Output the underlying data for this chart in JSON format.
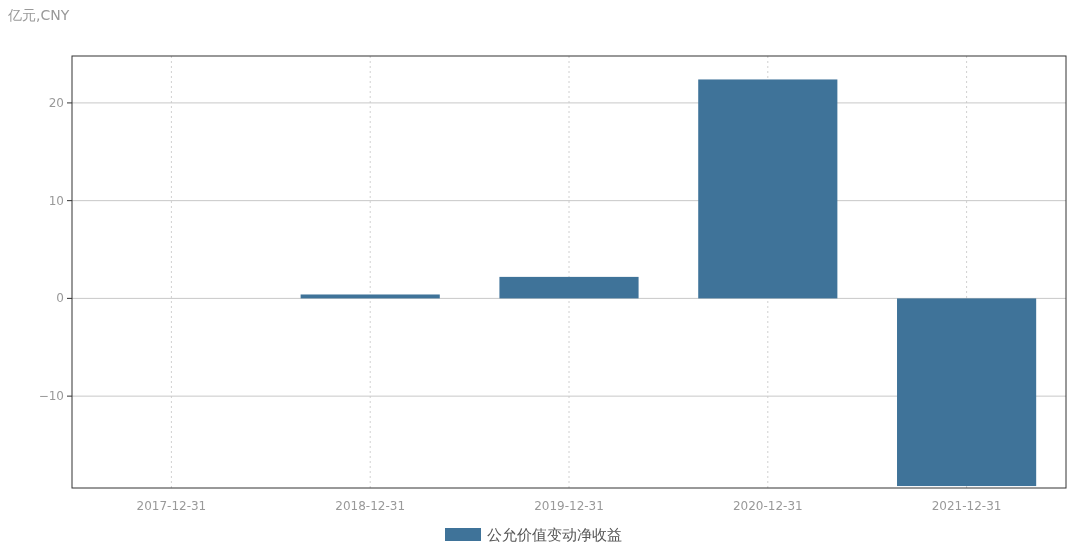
{
  "chart_data": {
    "type": "bar",
    "ylabel": "亿元,CNY",
    "categories": [
      "2017-12-31",
      "2018-12-31",
      "2019-12-31",
      "2020-12-31",
      "2021-12-31"
    ],
    "series": [
      {
        "name": "公允价值变动净收益",
        "color": "#3f7399",
        "values": [
          null,
          0.4,
          2.2,
          22.4,
          -19.2
        ]
      }
    ],
    "ylim": [
      -19.4,
      24.8
    ],
    "yticks": [
      -10,
      0,
      10,
      20
    ],
    "grid": true,
    "legend": "bottom"
  }
}
